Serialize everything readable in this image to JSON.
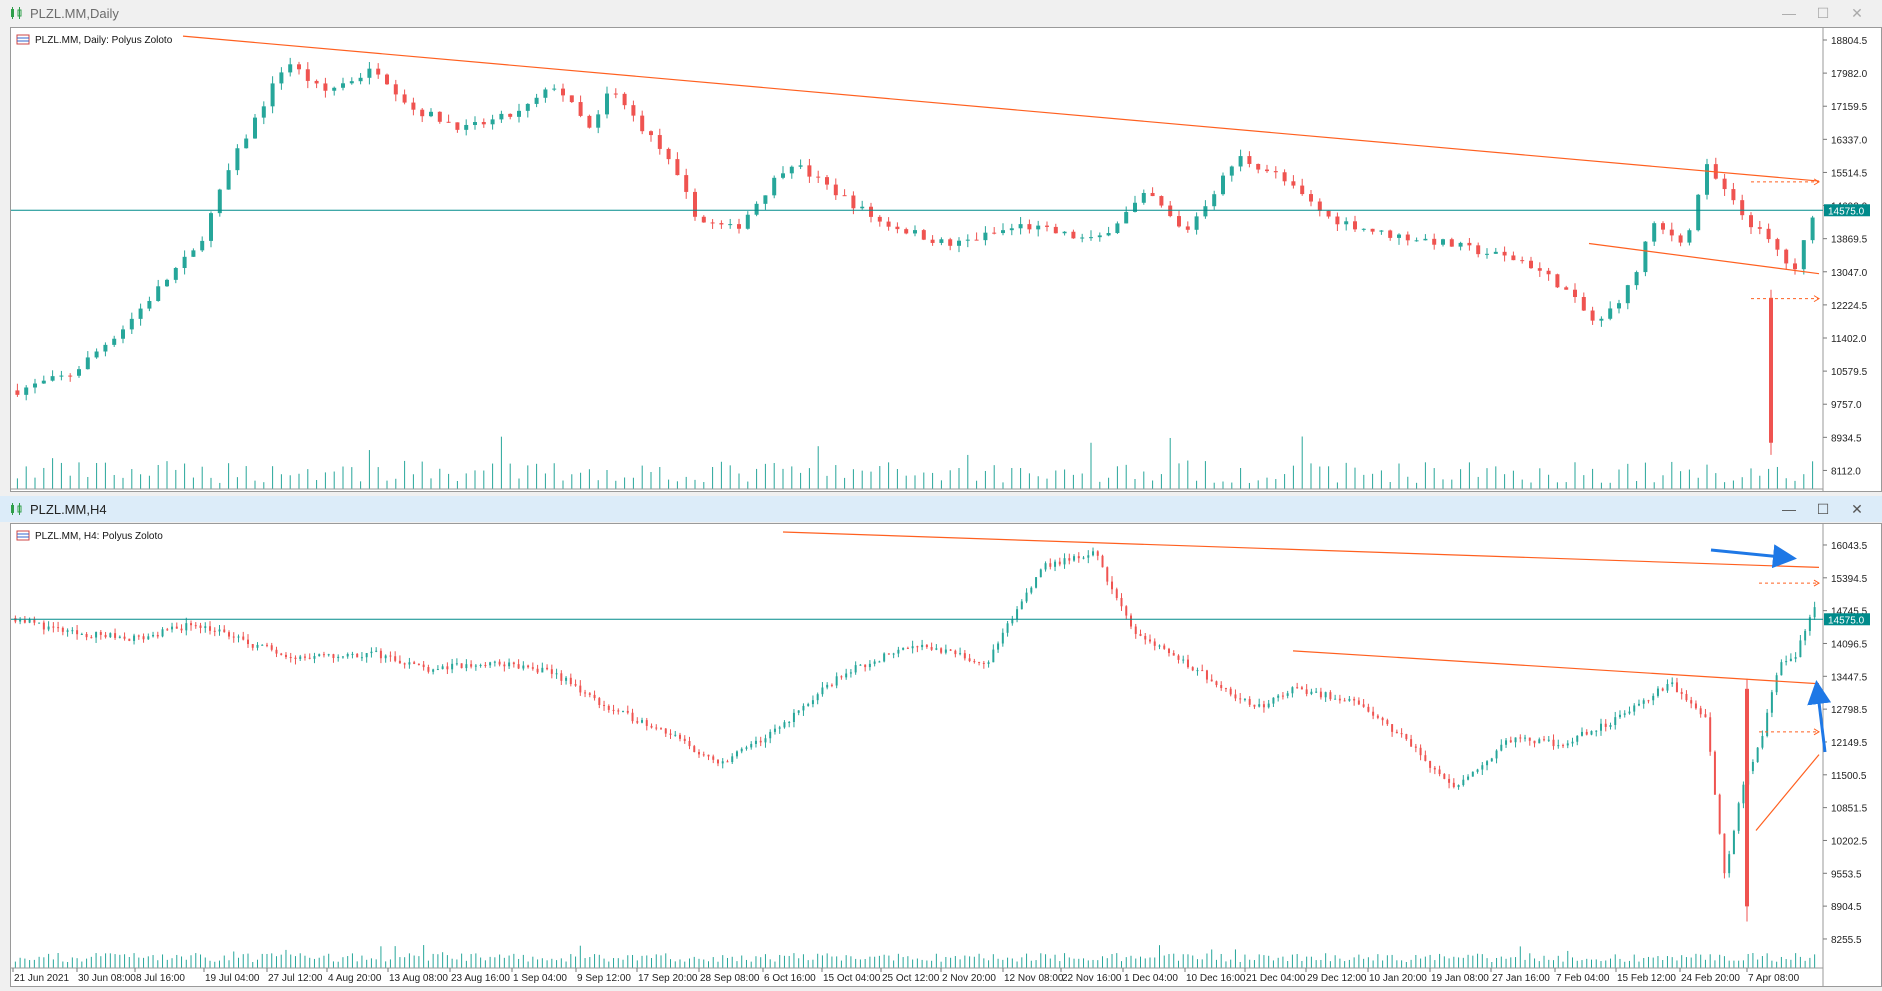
{
  "windows": [
    {
      "title": "PLZL.MM,Daily",
      "active": false,
      "controls": {
        "minimize": "—",
        "maximize": "☐",
        "close": "✕"
      },
      "chart_data": {
        "type": "candlestick",
        "symbol_label": "PLZL.MM, Daily:  Polyus Zoloto",
        "ylim": [
          7800,
          18804.5
        ],
        "y_ticks": [
          18804.5,
          17982.0,
          17159.5,
          16337.0,
          15514.5,
          14692.0,
          13869.5,
          13047.0,
          12224.5,
          11402.0,
          10579.5,
          9757.0,
          8934.5,
          8112.0
        ],
        "current_price": 14575.0,
        "current_price_label": "14575.0",
        "line_color": "#008b8b",
        "trendline_color": "#ff6020",
        "up_color": "#26a69a",
        "down_color": "#ef5350",
        "grid": false,
        "volume_shown": true
      }
    },
    {
      "title": "PLZL.MM,H4",
      "active": true,
      "controls": {
        "minimize": "—",
        "maximize": "☐",
        "close": "✕"
      },
      "chart_data": {
        "type": "candlestick",
        "symbol_label": "PLZL.MM, H4:  Polyus Zoloto",
        "ylim": [
          7800,
          16300
        ],
        "y_ticks": [
          16043.5,
          15394.5,
          14745.5,
          14096.5,
          13447.5,
          12798.5,
          12149.5,
          11500.5,
          10851.5,
          10202.5,
          9553.5,
          8904.5,
          8255.5
        ],
        "current_price": 14575.0,
        "current_price_label": "14575.0",
        "x_ticks": [
          "21 Jun 2021",
          "30 Jun 08:00",
          "8 Jul 16:00",
          "19 Jul 04:00",
          "27 Jul 12:00",
          "4 Aug 20:00",
          "13 Aug 08:00",
          "23 Aug 16:00",
          "1 Sep 04:00",
          "9 Sep 12:00",
          "17 Sep 20:00",
          "28 Sep 08:00",
          "6 Oct 16:00",
          "15 Oct 04:00",
          "25 Oct 12:00",
          "2 Nov 20:00",
          "12 Nov 08:00",
          "22 Nov 16:00",
          "1 Dec 04:00",
          "10 Dec 16:00",
          "21 Dec 04:00",
          "29 Dec 12:00",
          "10 Jan 20:00",
          "19 Jan 08:00",
          "27 Jan 16:00",
          "7 Feb 04:00",
          "15 Feb 12:00",
          "24 Feb 20:00",
          "7 Apr 08:00"
        ],
        "line_color": "#008b8b",
        "trendline_color": "#ff6020",
        "arrow_color": "#1e78e6",
        "up_color": "#26a69a",
        "down_color": "#ef5350",
        "grid": false,
        "volume_shown": true
      }
    }
  ]
}
